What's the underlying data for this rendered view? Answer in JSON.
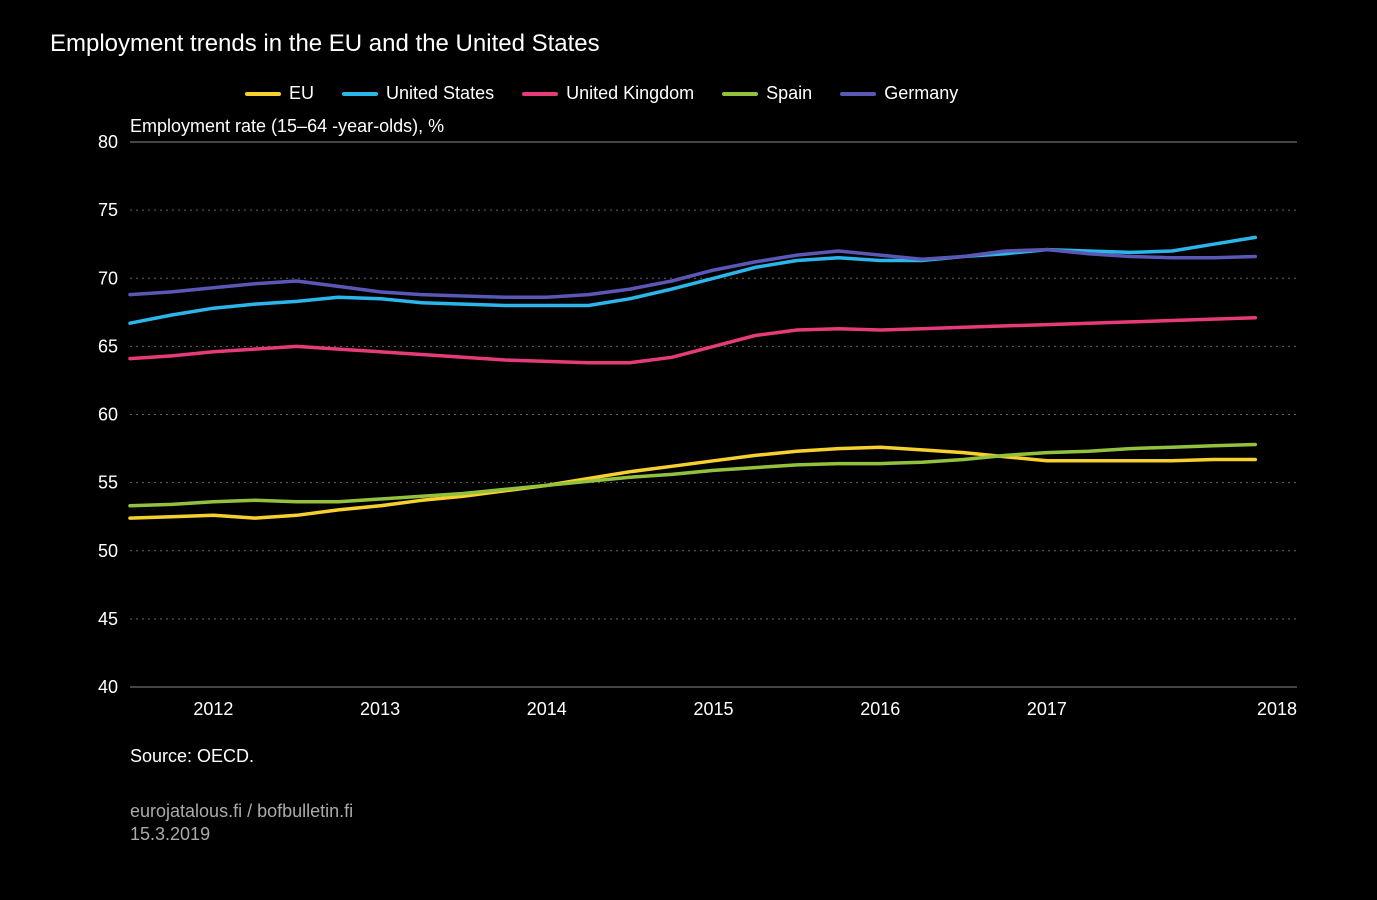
{
  "title": "Employment trends in the EU and the United States",
  "ylabel": "Employment rate (15–64 -year-olds), %",
  "footnote": "Source: OECD.",
  "source_line1": "eurojatalous.fi / bofbulletin.fi",
  "source_line2": "15.3.2019",
  "legend": [
    {
      "label": "EU",
      "color": "#f6d02f"
    },
    {
      "label": "United States",
      "color": "#2bb6ea"
    },
    {
      "label": "United Kingdom",
      "color": "#e63b7a"
    },
    {
      "label": "Spain",
      "color": "#94c13d"
    },
    {
      "label": "Germany",
      "color": "#5a57b5"
    }
  ],
  "chart": {
    "type": "line",
    "xlim": [
      2012.0,
      2019.0
    ],
    "ylim": [
      40,
      80
    ],
    "ytick_step": 5,
    "grid_color_minor": "#666666",
    "grid_color_major": "#888888",
    "line_width": 3.5,
    "background_color": "#000000",
    "text_color": "#ffffff",
    "xticks": [
      2012,
      2013,
      2014,
      2015,
      2016,
      2017,
      2018
    ],
    "series": [
      {
        "name": "EU",
        "color": "#f6d02f",
        "x": [
          2012.0,
          2012.25,
          2012.5,
          2012.75,
          2013.0,
          2013.25,
          2013.5,
          2013.75,
          2014.0,
          2014.25,
          2014.5,
          2014.75,
          2015.0,
          2015.25,
          2015.5,
          2015.75,
          2016.0,
          2016.25,
          2016.5,
          2016.75,
          2017.0,
          2017.25,
          2017.5,
          2017.75,
          2018.0,
          2018.25,
          2018.5,
          2018.75
        ],
        "y": [
          52.4,
          52.5,
          52.6,
          52.4,
          52.6,
          53.0,
          53.3,
          53.7,
          54.0,
          54.4,
          54.8,
          55.3,
          55.8,
          56.2,
          56.6,
          57.0,
          57.3,
          57.5,
          57.6,
          57.4,
          57.2,
          56.9,
          56.6,
          56.6,
          56.6,
          56.6,
          56.7,
          56.7
        ]
      },
      {
        "name": "United States",
        "color": "#2bb6ea",
        "x": [
          2012.0,
          2012.25,
          2012.5,
          2012.75,
          2013.0,
          2013.25,
          2013.5,
          2013.75,
          2014.0,
          2014.25,
          2014.5,
          2014.75,
          2015.0,
          2015.25,
          2015.5,
          2015.75,
          2016.0,
          2016.25,
          2016.5,
          2016.75,
          2017.0,
          2017.25,
          2017.5,
          2017.75,
          2018.0,
          2018.25,
          2018.5,
          2018.75
        ],
        "y": [
          66.7,
          67.3,
          67.8,
          68.1,
          68.3,
          68.6,
          68.5,
          68.2,
          68.1,
          68.0,
          68.0,
          68.0,
          68.5,
          69.2,
          70.0,
          70.8,
          71.3,
          71.5,
          71.3,
          71.3,
          71.6,
          71.8,
          72.1,
          72.0,
          71.9,
          72.0,
          72.5,
          73.0
        ]
      },
      {
        "name": "United Kingdom",
        "color": "#e63b7a",
        "x": [
          2012.0,
          2012.25,
          2012.5,
          2012.75,
          2013.0,
          2013.25,
          2013.5,
          2013.75,
          2014.0,
          2014.25,
          2014.5,
          2014.75,
          2015.0,
          2015.25,
          2015.5,
          2015.75,
          2016.0,
          2016.25,
          2016.5,
          2016.75,
          2017.0,
          2017.25,
          2017.5,
          2017.75,
          2018.0,
          2018.25,
          2018.5,
          2018.75
        ],
        "y": [
          64.1,
          64.3,
          64.6,
          64.8,
          65.0,
          64.8,
          64.6,
          64.4,
          64.2,
          64.0,
          63.9,
          63.8,
          63.8,
          64.2,
          65.0,
          65.8,
          66.2,
          66.3,
          66.2,
          66.3,
          66.4,
          66.5,
          66.6,
          66.7,
          66.8,
          66.9,
          67.0,
          67.1
        ]
      },
      {
        "name": "Spain",
        "color": "#94c13d",
        "x": [
          2012.0,
          2012.25,
          2012.5,
          2012.75,
          2013.0,
          2013.25,
          2013.5,
          2013.75,
          2014.0,
          2014.25,
          2014.5,
          2014.75,
          2015.0,
          2015.25,
          2015.5,
          2015.75,
          2016.0,
          2016.25,
          2016.5,
          2016.75,
          2017.0,
          2017.25,
          2017.5,
          2017.75,
          2018.0,
          2018.25,
          2018.5,
          2018.75
        ],
        "y": [
          53.3,
          53.4,
          53.6,
          53.7,
          53.6,
          53.6,
          53.8,
          54.0,
          54.2,
          54.5,
          54.8,
          55.1,
          55.4,
          55.6,
          55.9,
          56.1,
          56.3,
          56.4,
          56.4,
          56.5,
          56.7,
          57.0,
          57.2,
          57.3,
          57.5,
          57.6,
          57.7,
          57.8
        ]
      },
      {
        "name": "Germany",
        "color": "#5a57b5",
        "x": [
          2012.0,
          2012.25,
          2012.5,
          2012.75,
          2013.0,
          2013.25,
          2013.5,
          2013.75,
          2014.0,
          2014.25,
          2014.5,
          2014.75,
          2015.0,
          2015.25,
          2015.5,
          2015.75,
          2016.0,
          2016.25,
          2016.5,
          2016.75,
          2017.0,
          2017.25,
          2017.5,
          2017.75,
          2018.0,
          2018.25,
          2018.5,
          2018.75
        ],
        "y": [
          68.8,
          69.0,
          69.3,
          69.6,
          69.8,
          69.4,
          69.0,
          68.8,
          68.7,
          68.6,
          68.6,
          68.8,
          69.2,
          69.8,
          70.6,
          71.2,
          71.7,
          72.0,
          71.7,
          71.4,
          71.6,
          72.0,
          72.1,
          71.8,
          71.6,
          71.5,
          71.5,
          71.6
        ]
      }
    ]
  }
}
